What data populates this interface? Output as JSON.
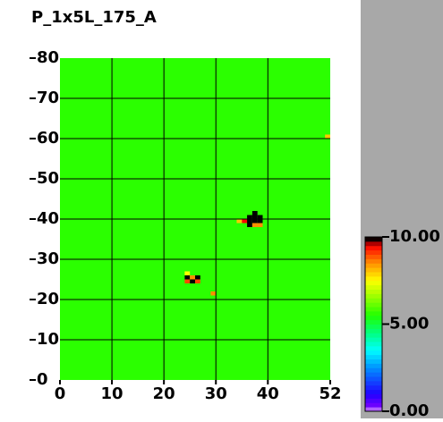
{
  "chart_data": {
    "type": "heatmap",
    "title": "P_1x5L_175_A",
    "xlim": [
      0,
      52
    ],
    "ylim": [
      0,
      80
    ],
    "xticks": [
      0,
      10,
      20,
      30,
      40,
      52
    ],
    "yticks": [
      0,
      10,
      20,
      30,
      40,
      50,
      60,
      70,
      80
    ],
    "grid": true,
    "grid_color": "#000000",
    "fill_value": 5.6,
    "cells": [
      {
        "x": 37,
        "y": 41,
        "value": 10
      },
      {
        "x": 36,
        "y": 40,
        "value": 10
      },
      {
        "x": 37,
        "y": 40,
        "value": 10
      },
      {
        "x": 38,
        "y": 40,
        "value": 10
      },
      {
        "x": 35,
        "y": 39,
        "value": 9.5
      },
      {
        "x": 36,
        "y": 39,
        "value": 10
      },
      {
        "x": 37,
        "y": 39,
        "value": 10
      },
      {
        "x": 38,
        "y": 39,
        "value": 10
      },
      {
        "x": 36,
        "y": 38,
        "value": 10
      },
      {
        "x": 37,
        "y": 38,
        "value": 8.5
      },
      {
        "x": 38,
        "y": 38,
        "value": 8.5
      },
      {
        "x": 34,
        "y": 39,
        "value": 8
      },
      {
        "x": 24,
        "y": 25,
        "value": 10
      },
      {
        "x": 25,
        "y": 25,
        "value": 8.5
      },
      {
        "x": 26,
        "y": 25,
        "value": 10
      },
      {
        "x": 24,
        "y": 24,
        "value": 9
      },
      {
        "x": 25,
        "y": 24,
        "value": 10
      },
      {
        "x": 26,
        "y": 24,
        "value": 9
      },
      {
        "x": 29,
        "y": 21,
        "value": 8.5
      },
      {
        "x": 24,
        "y": 26,
        "value": 7.5
      },
      {
        "x": 51,
        "y": 60,
        "value": 8
      }
    ],
    "colorbar": {
      "lim": [
        0,
        10
      ],
      "ticks": [
        {
          "value": 10,
          "label": "10.00"
        },
        {
          "value": 5,
          "label": "5.00"
        },
        {
          "value": 0,
          "label": "0.00"
        }
      ]
    },
    "colormap": [
      [
        0,
        "#ffffff"
      ],
      [
        0.2,
        "#8000ff"
      ],
      [
        1,
        "#2000ff"
      ],
      [
        2.5,
        "#0090ff"
      ],
      [
        3.5,
        "#00ffff"
      ],
      [
        4.5,
        "#00ff80"
      ],
      [
        5.5,
        "#20ff00"
      ],
      [
        6.5,
        "#90ff00"
      ],
      [
        7.5,
        "#ffff00"
      ],
      [
        8.5,
        "#ff9000"
      ],
      [
        9.5,
        "#ff0000"
      ],
      [
        9.9,
        "#000000"
      ],
      [
        10,
        "#000000"
      ]
    ]
  }
}
